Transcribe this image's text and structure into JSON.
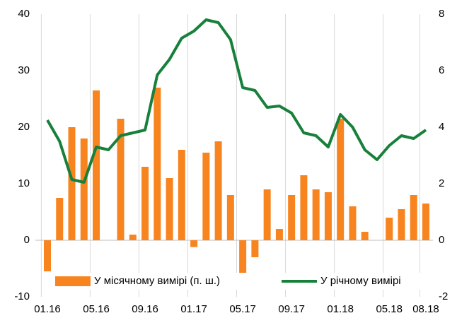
{
  "chart_data": {
    "type": "bar_line",
    "categories": [
      "01.16",
      null,
      null,
      null,
      "05.16",
      null,
      null,
      null,
      "09.16",
      null,
      null,
      null,
      "01.17",
      null,
      null,
      null,
      "05.17",
      null,
      null,
      null,
      "09.17",
      null,
      null,
      null,
      "01.18",
      null,
      null,
      null,
      "05.18",
      null,
      null,
      "08.18"
    ],
    "series": [
      {
        "name": "У місячному вимірі (п. ш.)",
        "type": "bar",
        "color": "#f7841f",
        "values": [
          -5.5,
          7.5,
          20,
          18,
          26.5,
          0,
          21.5,
          1,
          13,
          27,
          11,
          16,
          -1.2,
          15.5,
          17.5,
          8,
          -6.5,
          -3,
          9,
          2,
          8,
          11.5,
          9,
          8.5,
          21.5,
          6,
          1.5,
          0,
          4,
          5.5,
          8,
          6.5
        ]
      },
      {
        "name": "У річному вимірі",
        "type": "line",
        "axis": "y2",
        "color": "#17803a",
        "values": [
          4.25,
          3.5,
          2.15,
          2.05,
          3.3,
          3.2,
          3.7,
          3.8,
          3.9,
          5.85,
          6.4,
          7.15,
          7.4,
          7.8,
          7.7,
          7.1,
          5.4,
          5.3,
          4.7,
          4.75,
          4.5,
          3.8,
          3.7,
          3.3,
          4.45,
          4.0,
          3.2,
          2.85,
          3.35,
          3.7,
          3.6,
          3.9
        ]
      }
    ],
    "ylim": [
      -10,
      40
    ],
    "yticks": [
      -10,
      0,
      10,
      20,
      30,
      40
    ],
    "y2lim": [
      -2,
      8
    ],
    "y2ticks": [
      -2,
      0,
      2,
      4,
      6,
      8
    ],
    "xgrid": true,
    "legend": "bottom"
  }
}
